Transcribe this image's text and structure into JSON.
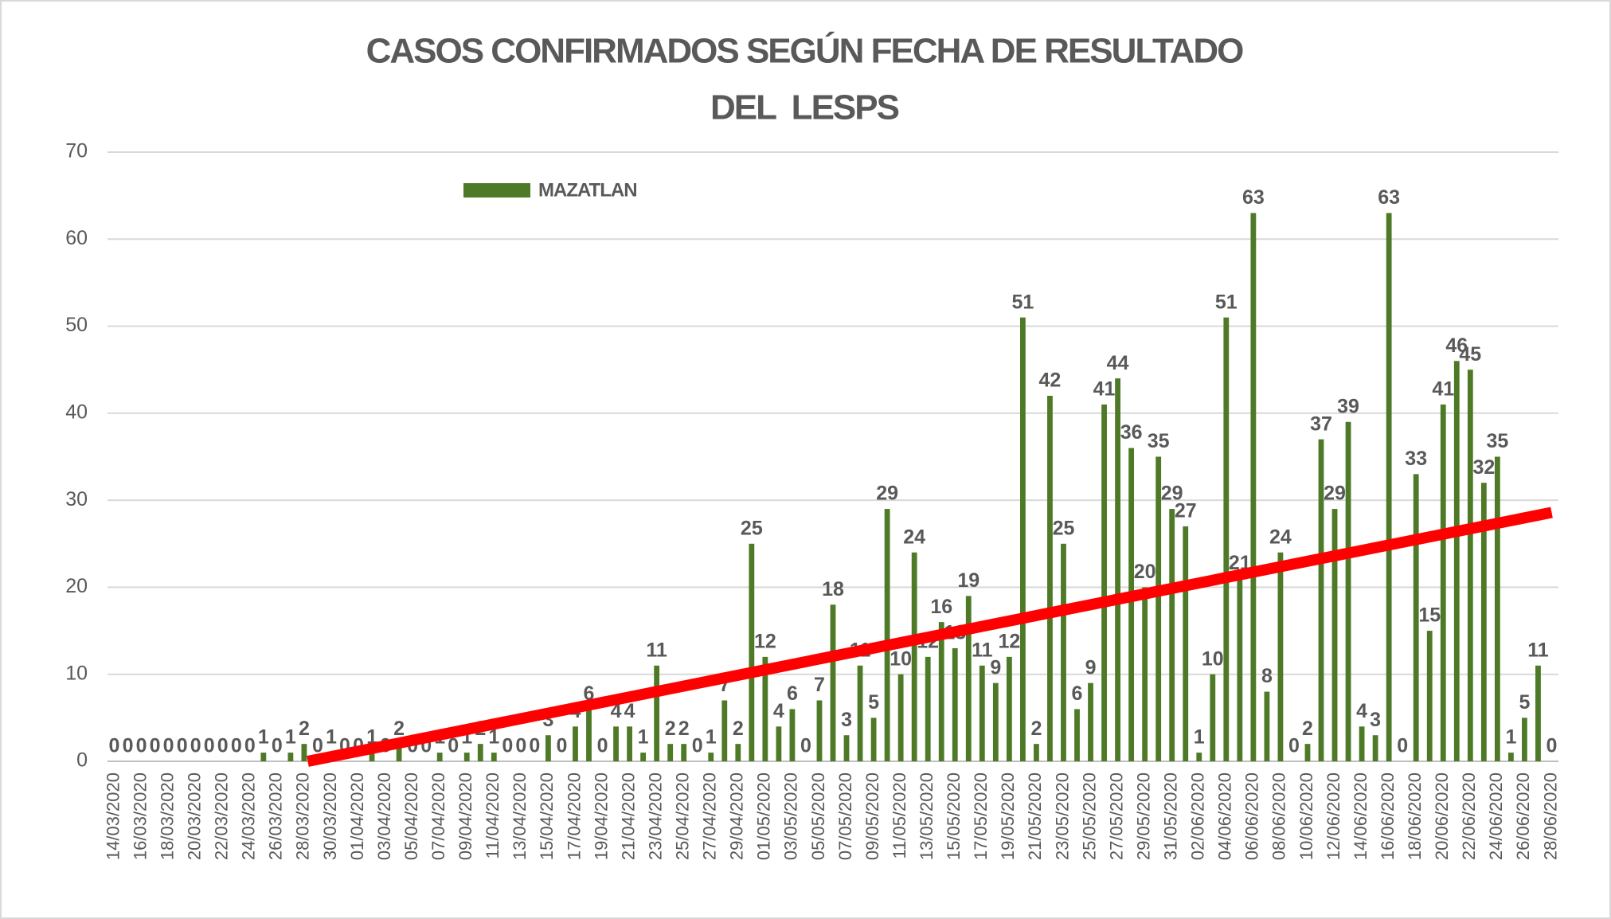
{
  "chart_data": {
    "type": "bar",
    "title": [
      "CASOS CONFIRMADOS SEGÚN FECHA DE RESULTADO",
      "DEL  LESPS"
    ],
    "categories": [
      "14/03/2020",
      null,
      "16/03/2020",
      null,
      "18/03/2020",
      null,
      "20/03/2020",
      null,
      "22/03/2020",
      null,
      "24/03/2020",
      null,
      "26/03/2020",
      null,
      "28/03/2020",
      null,
      "30/03/2020",
      null,
      "01/04/2020",
      null,
      "03/04/2020",
      null,
      "05/04/2020",
      null,
      "07/04/2020",
      null,
      "09/04/2020",
      null,
      "11/04/2020",
      null,
      "13/04/2020",
      null,
      "15/04/2020",
      null,
      "17/04/2020",
      null,
      "19/04/2020",
      null,
      "21/04/2020",
      null,
      "23/04/2020",
      null,
      "25/04/2020",
      null,
      "27/04/2020",
      null,
      "29/04/2020",
      null,
      "01/05/2020",
      null,
      "03/05/2020",
      null,
      "05/05/2020",
      null,
      "07/05/2020",
      null,
      "09/05/2020",
      null,
      "11/05/2020",
      null,
      "13/05/2020",
      null,
      "15/05/2020",
      null,
      "17/05/2020",
      null,
      "19/05/2020",
      null,
      "21/05/2020",
      null,
      "23/05/2020",
      null,
      "25/05/2020",
      null,
      "27/05/2020",
      null,
      "29/05/2020",
      null,
      "31/05/2020",
      null,
      "02/06/2020",
      null,
      "04/06/2020",
      null,
      "06/06/2020",
      null,
      "08/06/2020",
      null,
      "10/06/2020",
      null,
      "12/06/2020",
      null,
      "14/06/2020",
      null,
      "16/06/2020",
      null,
      "18/06/2020",
      null,
      "20/06/2020",
      null,
      "22/06/2020",
      null,
      "24/06/2020",
      null,
      "26/06/2020",
      null,
      "28/06/2020"
    ],
    "series": [
      {
        "name": "MAZATLAN",
        "color": "#4e7a27",
        "values": [
          0,
          0,
          0,
          0,
          0,
          0,
          0,
          0,
          0,
          0,
          0,
          1,
          0,
          1,
          2,
          0,
          1,
          0,
          0,
          1,
          0,
          2,
          0,
          0,
          1,
          0,
          1,
          2,
          1,
          0,
          0,
          0,
          3,
          0,
          4,
          6,
          0,
          4,
          4,
          1,
          11,
          2,
          2,
          0,
          1,
          7,
          2,
          25,
          12,
          4,
          6,
          0,
          7,
          18,
          3,
          11,
          5,
          29,
          10,
          24,
          12,
          16,
          13,
          19,
          11,
          9,
          12,
          51,
          2,
          42,
          25,
          6,
          9,
          41,
          44,
          36,
          20,
          35,
          29,
          27,
          1,
          10,
          51,
          21,
          63,
          8,
          24,
          0,
          2,
          37,
          29,
          39,
          4,
          3,
          63,
          0,
          33,
          15,
          41,
          46,
          45,
          32,
          35,
          1,
          5,
          11,
          0
        ]
      }
    ],
    "ylim": [
      0,
      70
    ],
    "yticks": [
      0,
      10,
      20,
      30,
      40,
      50,
      60,
      70
    ],
    "grid": true,
    "data_labels": true,
    "trendline": {
      "type": "linear",
      "color": "#ff0000"
    },
    "legend": "top-left"
  }
}
